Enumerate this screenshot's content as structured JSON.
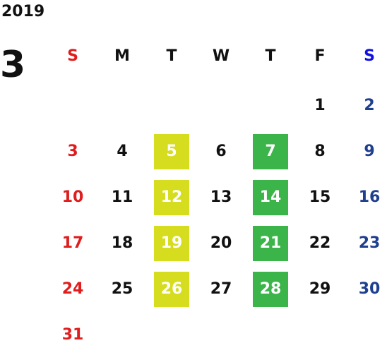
{
  "year": "2019",
  "month": "3",
  "weekdays": [
    "S",
    "M",
    "T",
    "W",
    "T",
    "F",
    "S"
  ],
  "colors": {
    "sunday": "#e01c1c",
    "saturday_header": "#1010e0",
    "saturday": "#1f3f8f",
    "highlight_tuesday": "#d6dc1e",
    "highlight_thursday": "#3bb54a"
  },
  "weeks": [
    [
      "",
      "",
      "",
      "",
      "",
      "1",
      "2"
    ],
    [
      "3",
      "4",
      "5",
      "6",
      "7",
      "8",
      "9"
    ],
    [
      "10",
      "11",
      "12",
      "13",
      "14",
      "15",
      "16"
    ],
    [
      "17",
      "18",
      "19",
      "20",
      "21",
      "22",
      "23"
    ],
    [
      "24",
      "25",
      "26",
      "27",
      "28",
      "29",
      "30"
    ],
    [
      "31",
      "",
      "",
      "",
      "",
      "",
      ""
    ]
  ]
}
